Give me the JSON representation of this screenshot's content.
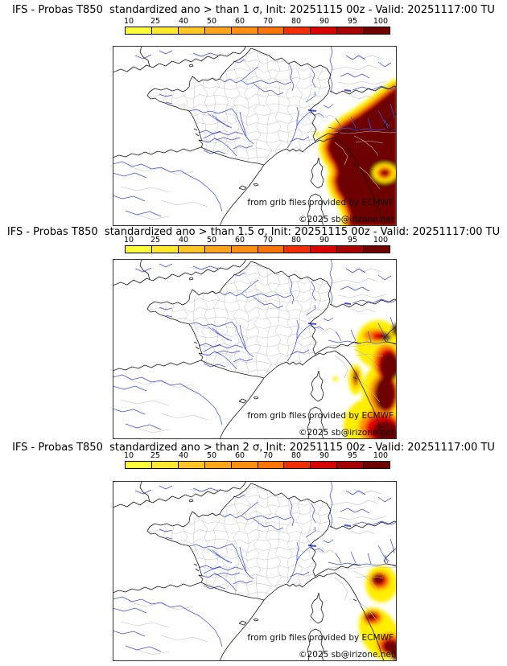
{
  "panels": [
    {
      "title": "IFS - Probas T850  standardized ano > than 1 σ, Init: 20251115 00z - Valid: 20251117:00 TU",
      "threshold_sigma": "1"
    },
    {
      "title": "IFS - Probas T850  standardized ano > than 1.5 σ, Init: 20251115 00z - Valid: 20251117:00 TU",
      "threshold_sigma": "1.5"
    },
    {
      "title": "IFS - Probas T850  standardized ano > than 2 σ, Init: 20251115 00z - Valid: 20251117:00 TU",
      "threshold_sigma": "2"
    }
  ],
  "colorbar": {
    "tick_labels": [
      "10",
      "25",
      "40",
      "50",
      "60",
      "70",
      "80",
      "90",
      "95",
      "100"
    ],
    "levels": [
      10,
      25,
      40,
      50,
      60,
      70,
      80,
      90,
      95,
      100
    ],
    "colors": [
      "#ffff3d",
      "#ffe92e",
      "#ffc524",
      "#ffa51c",
      "#ff8f12",
      "#ff7504",
      "#f03000",
      "#d80300",
      "#a80000",
      "#700000"
    ]
  },
  "map_credits": {
    "line1": "from grib files provided by ECMWF",
    "line2": "©2025 sb@irizone.net"
  },
  "chart_data": {
    "type": "heatmap",
    "title": "IFS ensemble probability (%) of T850 standardized anomaly exceeding threshold",
    "thresholds_sigma": [
      1,
      1.5,
      2
    ],
    "init": "20251115 00z",
    "valid": "20251117:00 TU",
    "colorbar_levels": [
      10,
      25,
      40,
      50,
      60,
      70,
      80,
      90,
      95,
      100
    ],
    "colorbar_colors": [
      "#ffff3d",
      "#ffe92e",
      "#ffc524",
      "#ffa51c",
      "#ff8f12",
      "#ff7504",
      "#f03000",
      "#d80300",
      "#a80000",
      "#700000"
    ],
    "region": "France / western Europe",
    "high_probability_area": "northern Italy and the Alps, shrinking from panel 1 to panel 3"
  }
}
